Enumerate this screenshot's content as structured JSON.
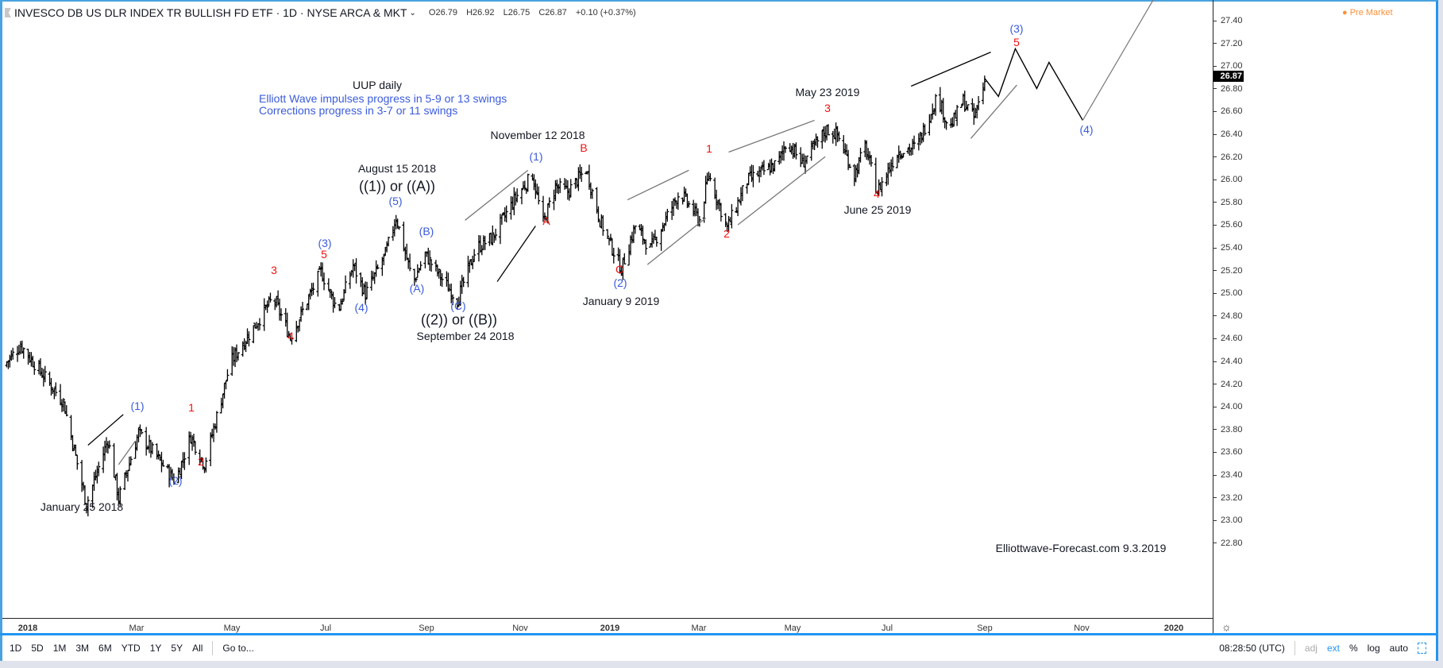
{
  "header": {
    "title": "INVESCO DB US DLR INDEX TR BULLISH FD ETF · 1D · NYSE ARCA & MKT",
    "open": "O26.79",
    "high": "H26.92",
    "low": "L26.75",
    "close": "C26.87",
    "change": "+0.10 (+0.37%)",
    "premarket": "Pre Market"
  },
  "price_axis": {
    "ticks": [
      "27.40",
      "27.20",
      "27.00",
      "26.80",
      "26.60",
      "26.40",
      "26.20",
      "26.00",
      "25.80",
      "25.60",
      "25.40",
      "25.20",
      "25.00",
      "24.80",
      "24.60",
      "24.40",
      "24.20",
      "24.00",
      "23.80",
      "23.60",
      "23.40",
      "23.20",
      "23.00",
      "22.80"
    ],
    "last_price": "26.87"
  },
  "time_axis": {
    "ticks": [
      "2018",
      "Mar",
      "May",
      "Jul",
      "Sep",
      "Nov",
      "2019",
      "Mar",
      "May",
      "Jul",
      "Sep",
      "Nov",
      "2020"
    ]
  },
  "toolbar": {
    "ranges": [
      "1D",
      "5D",
      "1M",
      "3M",
      "6M",
      "YTD",
      "1Y",
      "5Y",
      "All"
    ],
    "goto": "Go to...",
    "clock": "08:28:50 (UTC)",
    "adj": "adj",
    "ext": "ext",
    "percent": "%",
    "log": "log",
    "auto": "auto"
  },
  "annotations": {
    "title": "UUP daily",
    "note1": "Elliott Wave impulses progress in 5-9 or 13 swings",
    "note2": "Corrections progress in 3-7 or 11 swings",
    "d_jan25_2018": "January 25 2018",
    "d_aug15_2018": "August 15 2018",
    "d_sep24_2018": "September 24 2018",
    "d_nov12_2018": "November 12 2018",
    "d_jan9_2019": "January 9 2019",
    "d_may23_2019": "May 23 2019",
    "d_jun25_2019": "June 25 2019",
    "w1A": "((1)) or ((A))",
    "w2B": "((2)) or ((B))",
    "p1": "(1)",
    "p2": "(2)",
    "p3": "(3)",
    "p4": "(4)",
    "p5": "(5)",
    "pA": "(A)",
    "pB": "(B)",
    "pC": "(C)",
    "r1": "1",
    "r2": "2",
    "r3": "3",
    "r4": "4",
    "r5": "5",
    "rA": "A",
    "rB": "B",
    "rC": "C",
    "watermark": "Elliottwave-Forecast.com 9.3.2019"
  },
  "colors": {
    "bars": "#000000",
    "wave_blue": "#3b5bdb",
    "wave_red": "#f01010",
    "frame": "#2196f3",
    "premarket": "#f7913a"
  },
  "chart_data": {
    "type": "ohlc",
    "symbol": "UUP",
    "interval": "1D",
    "ylim": [
      22.7,
      27.5
    ],
    "log": false,
    "grid": false,
    "path": [
      [
        "2017-12-02",
        24.37
      ],
      [
        "2017-12-13",
        24.55
      ],
      [
        "2018-01-10",
        24.05
      ],
      [
        "2018-01-25",
        23.15
      ],
      [
        "2018-02-08",
        23.72
      ],
      [
        "2018-02-15",
        23.2
      ],
      [
        "2018-02-28",
        23.78
      ],
      [
        "2018-03-24",
        23.35
      ],
      [
        "2018-04-03",
        23.75
      ],
      [
        "2018-04-12",
        23.5
      ],
      [
        "2018-04-29",
        24.4
      ],
      [
        "2018-05-27",
        24.97
      ],
      [
        "2018-06-07",
        24.62
      ],
      [
        "2018-06-27",
        25.2
      ],
      [
        "2018-07-08",
        24.85
      ],
      [
        "2018-07-18",
        25.25
      ],
      [
        "2018-07-26",
        25.0
      ],
      [
        "2018-08-08",
        25.35
      ],
      [
        "2018-08-15",
        25.68
      ],
      [
        "2018-08-26",
        25.1
      ],
      [
        "2018-09-03",
        25.35
      ],
      [
        "2018-09-13",
        25.15
      ],
      [
        "2018-09-24",
        24.95
      ],
      [
        "2018-10-06",
        25.4
      ],
      [
        "2018-10-17",
        25.5
      ],
      [
        "2018-11-01",
        25.85
      ],
      [
        "2018-11-12",
        26.05
      ],
      [
        "2018-11-19",
        25.62
      ],
      [
        "2018-11-27",
        25.95
      ],
      [
        "2018-12-05",
        25.9
      ],
      [
        "2018-12-17",
        26.1
      ],
      [
        "2018-12-26",
        25.65
      ],
      [
        "2019-01-09",
        25.22
      ],
      [
        "2019-01-18",
        25.6
      ],
      [
        "2019-01-28",
        25.4
      ],
      [
        "2019-02-16",
        25.9
      ],
      [
        "2019-03-01",
        25.65
      ],
      [
        "2019-03-07",
        26.05
      ],
      [
        "2019-03-19",
        25.58
      ],
      [
        "2019-04-01",
        26.0
      ],
      [
        "2019-04-21",
        26.15
      ],
      [
        "2019-04-27",
        26.35
      ],
      [
        "2019-05-07",
        26.15
      ],
      [
        "2019-05-23",
        26.45
      ],
      [
        "2019-05-30",
        26.4
      ],
      [
        "2019-06-10",
        26.05
      ],
      [
        "2019-06-17",
        26.3
      ],
      [
        "2019-06-25",
        25.9
      ],
      [
        "2019-07-08",
        26.25
      ],
      [
        "2019-07-21",
        26.3
      ],
      [
        "2019-08-03",
        26.75
      ],
      [
        "2019-08-11",
        26.45
      ],
      [
        "2019-08-20",
        26.7
      ],
      [
        "2019-08-27",
        26.55
      ],
      [
        "2019-09-03",
        26.87
      ]
    ],
    "projection": [
      [
        "2019-09-03",
        26.9
      ],
      [
        "2019-09-12",
        26.74
      ],
      [
        "2019-09-23",
        27.16
      ],
      [
        "2019-10-07",
        26.81
      ],
      [
        "2019-10-15",
        27.04
      ],
      [
        "2019-11-06",
        26.53
      ]
    ],
    "projection_extension": [
      [
        "2019-11-06",
        26.53
      ],
      [
        "2019-12-22",
        27.59
      ]
    ],
    "trendlines": [
      {
        "from": [
          "2018-01-26",
          23.67
        ],
        "to": [
          "2018-02-18",
          23.94
        ],
        "color": "#000000"
      },
      {
        "from": [
          "2018-02-15",
          23.5
        ],
        "to": [
          "2018-02-26",
          23.71
        ],
        "color": "#777777"
      },
      {
        "from": [
          "2018-09-29",
          25.65
        ],
        "to": [
          "2018-11-09",
          26.09
        ],
        "color": "#777777"
      },
      {
        "from": [
          "2018-10-20",
          25.11
        ],
        "to": [
          "2018-11-14",
          25.6
        ],
        "color": "#000000"
      },
      {
        "from": [
          "2019-01-13",
          25.83
        ],
        "to": [
          "2019-02-22",
          26.09
        ],
        "color": "#777777"
      },
      {
        "from": [
          "2019-01-26",
          25.26
        ],
        "to": [
          "2019-03-05",
          25.67
        ],
        "color": "#777777"
      },
      {
        "from": [
          "2019-03-20",
          26.25
        ],
        "to": [
          "2019-05-15",
          26.53
        ],
        "color": "#777777"
      },
      {
        "from": [
          "2019-03-26",
          25.61
        ],
        "to": [
          "2019-05-22",
          26.21
        ],
        "color": "#777777"
      },
      {
        "from": [
          "2019-07-17",
          26.83
        ],
        "to": [
          "2019-09-07",
          27.13
        ],
        "color": "#000000"
      },
      {
        "from": [
          "2019-08-25",
          26.37
        ],
        "to": [
          "2019-09-24",
          26.84
        ],
        "color": "#777777"
      }
    ]
  }
}
